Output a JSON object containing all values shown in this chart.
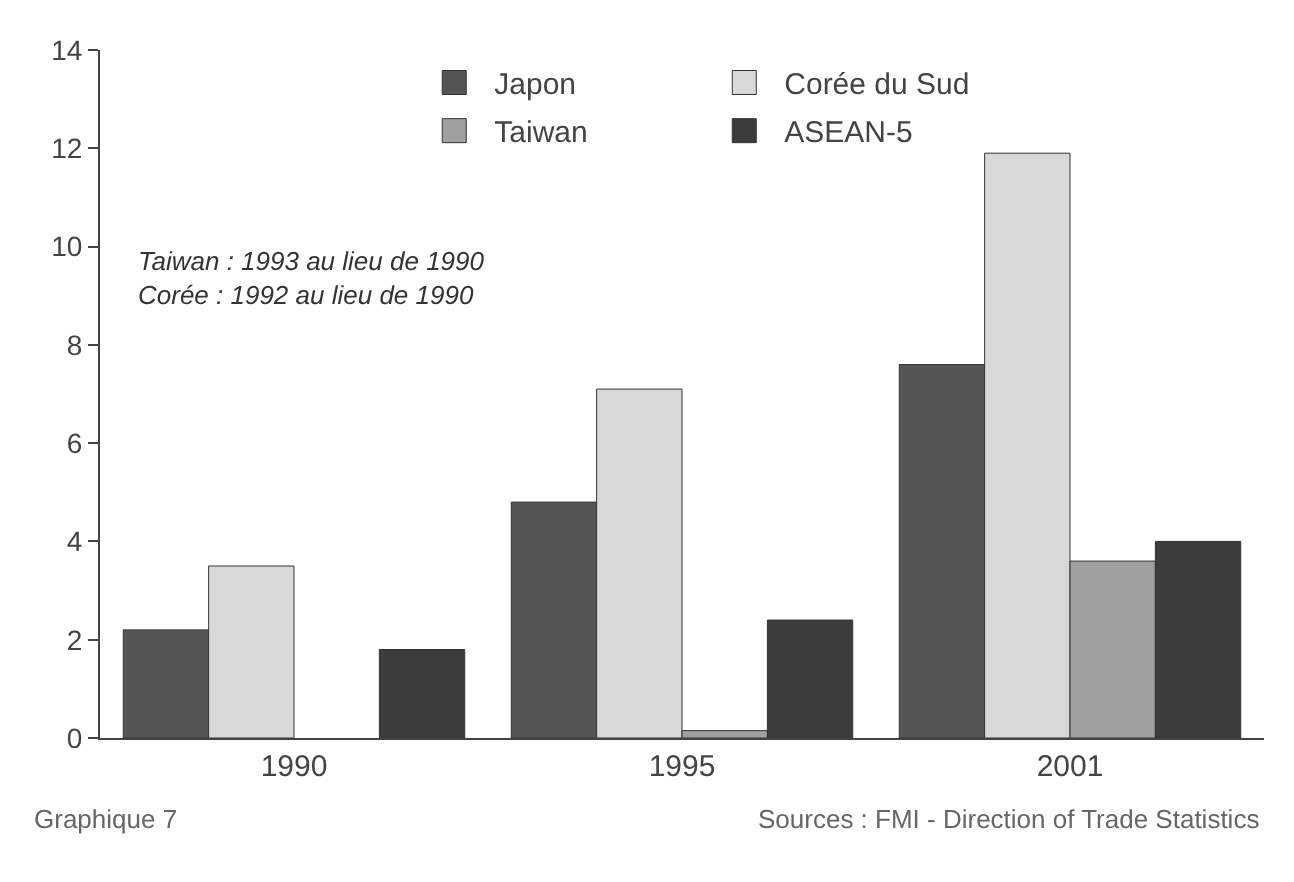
{
  "chart_data": {
    "type": "bar",
    "categories": [
      "1990",
      "1995",
      "2001"
    ],
    "series": [
      {
        "name": "Japon",
        "color": "#555555",
        "values": [
          2.2,
          4.8,
          7.6
        ]
      },
      {
        "name": "Corée du Sud",
        "color": "#d8d8d8",
        "values": [
          3.5,
          7.1,
          11.9
        ]
      },
      {
        "name": "Taiwan",
        "color": "#a0a0a0",
        "values": [
          null,
          0.15,
          3.6
        ]
      },
      {
        "name": "ASEAN-5",
        "color": "#3c3c3c",
        "values": [
          1.8,
          2.4,
          4.0
        ]
      }
    ],
    "ylim": [
      0,
      14
    ],
    "yticks": [
      0,
      2,
      4,
      6,
      8,
      10,
      12,
      14
    ],
    "legend": "top",
    "annotations": [
      "Taiwan : 1993 au lieu de 1990\nCorée : 1992 au lieu de 1990",
      "Graphique 7",
      "Sources : FMI - Direction of Trade Statistics"
    ]
  }
}
